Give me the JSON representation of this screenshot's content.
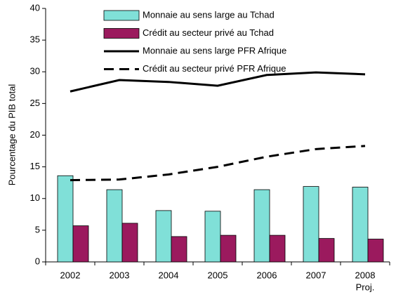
{
  "chart_data": {
    "type": "bar",
    "y_label": "Pourcentage du PIB total",
    "categories": [
      "2002",
      "2003",
      "2004",
      "2005",
      "2006",
      "2007",
      "2008"
    ],
    "annotation": "Proj.",
    "ylim": [
      0,
      40
    ],
    "yticks": [
      0,
      5,
      10,
      15,
      20,
      25,
      30,
      35,
      40
    ],
    "grid": false,
    "legend": "top",
    "series": [
      {
        "name": "Monnaie au sens large au Tchad",
        "type": "bar",
        "color": "#80e0d8",
        "values": [
          13.6,
          11.4,
          8.1,
          8.0,
          11.4,
          11.9,
          11.8
        ]
      },
      {
        "name": "Crédit au secteur privé au Tchad",
        "type": "bar",
        "color": "#9b1a5e",
        "values": [
          5.7,
          6.1,
          4.0,
          4.2,
          4.2,
          3.7,
          3.6
        ]
      },
      {
        "name": "Monnaie au sens large PFR Afrique",
        "type": "line",
        "color": "#000000",
        "dash": false,
        "values": [
          26.9,
          28.7,
          28.4,
          27.8,
          29.5,
          29.9,
          29.6
        ]
      },
      {
        "name": "Crédit au secteur privé PFR Afrique",
        "type": "line",
        "color": "#000000",
        "dash": true,
        "values": [
          12.9,
          13.0,
          13.8,
          15.0,
          16.6,
          17.8,
          18.3
        ]
      }
    ]
  }
}
